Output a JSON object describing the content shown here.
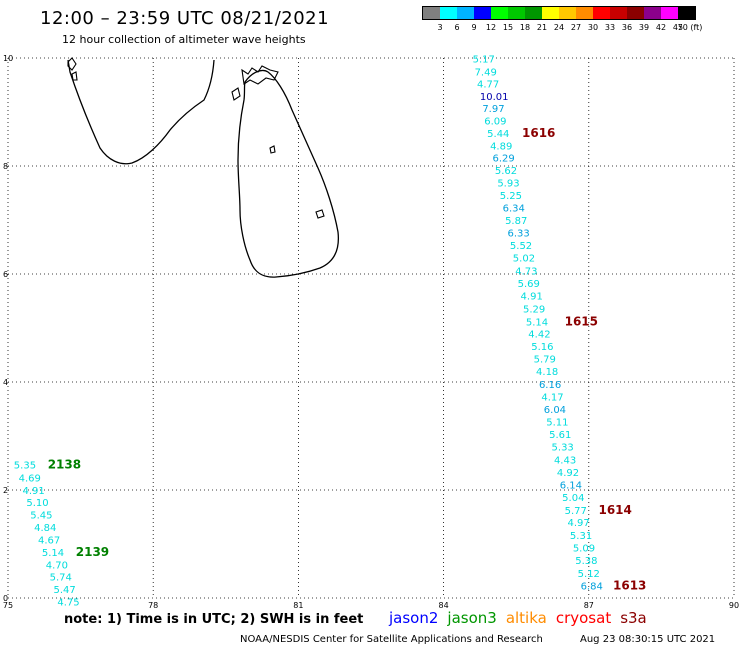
{
  "header": {
    "title": "12:00 – 23:59 UTC 08/21/2021",
    "subtitle": "12 hour collection of altimeter wave heights"
  },
  "color_scale": {
    "labels": [
      "3",
      "6",
      "9",
      "12",
      "15",
      "18",
      "21",
      "24",
      "27",
      "30",
      "33",
      "36",
      "39",
      "42",
      "45",
      "70 (ft)"
    ],
    "colors": [
      "#808080",
      "#00ffff",
      "#00b4ff",
      "#0000ff",
      "#00ff00",
      "#00c800",
      "#009600",
      "#ffff00",
      "#ffc800",
      "#ff8c00",
      "#ff0000",
      "#c80000",
      "#8b0000",
      "#8b008b",
      "#ff00ff",
      "#000000"
    ]
  },
  "map": {
    "x_axis": {
      "min": 75,
      "max": 90,
      "ticks": [
        "75",
        "78",
        "81",
        "84",
        "87",
        "90"
      ]
    },
    "y_axis": {
      "min": 0,
      "max": 10,
      "ticks": [
        "0",
        "2",
        "4",
        "6",
        "8",
        "10"
      ]
    },
    "grid": "dotted",
    "swh_readings": [
      {
        "lon": 84.6,
        "lat": 9.92,
        "v": "5.17",
        "c": "#00dcdc"
      },
      {
        "lon": 84.64,
        "lat": 9.68,
        "v": "7.49",
        "c": "#00dcdc"
      },
      {
        "lon": 84.69,
        "lat": 9.45,
        "v": "4.77",
        "c": "#00dcdc"
      },
      {
        "lon": 84.75,
        "lat": 9.22,
        "v": "10.01",
        "c": "#0000aa"
      },
      {
        "lon": 84.8,
        "lat": 9.0,
        "v": "7.97",
        "c": "#00a0dc"
      },
      {
        "lon": 84.84,
        "lat": 8.77,
        "v": "6.09",
        "c": "#00dcdc"
      },
      {
        "lon": 84.9,
        "lat": 8.54,
        "v": "5.44",
        "c": "#00dcdc"
      },
      {
        "lon": 84.96,
        "lat": 8.31,
        "v": "4.89",
        "c": "#00dcdc"
      },
      {
        "lon": 85.01,
        "lat": 8.08,
        "v": "6.29",
        "c": "#00a0dc"
      },
      {
        "lon": 85.06,
        "lat": 7.85,
        "v": "5.62",
        "c": "#00dcdc"
      },
      {
        "lon": 85.11,
        "lat": 7.62,
        "v": "5.93",
        "c": "#00dcdc"
      },
      {
        "lon": 85.16,
        "lat": 7.39,
        "v": "5.25",
        "c": "#00dcdc"
      },
      {
        "lon": 85.22,
        "lat": 7.16,
        "v": "6.34",
        "c": "#00a0dc"
      },
      {
        "lon": 85.27,
        "lat": 6.93,
        "v": "5.87",
        "c": "#00dcdc"
      },
      {
        "lon": 85.32,
        "lat": 6.69,
        "v": "6.33",
        "c": "#00a0dc"
      },
      {
        "lon": 85.37,
        "lat": 6.46,
        "v": "5.52",
        "c": "#00dcdc"
      },
      {
        "lon": 85.43,
        "lat": 6.23,
        "v": "5.02",
        "c": "#00dcdc"
      },
      {
        "lon": 85.48,
        "lat": 5.99,
        "v": "4.73",
        "c": "#00dcdc"
      },
      {
        "lon": 85.53,
        "lat": 5.76,
        "v": "5.69",
        "c": "#00dcdc"
      },
      {
        "lon": 85.59,
        "lat": 5.53,
        "v": "4.91",
        "c": "#00dcdc"
      },
      {
        "lon": 85.64,
        "lat": 5.29,
        "v": "5.29",
        "c": "#00dcdc"
      },
      {
        "lon": 85.7,
        "lat": 5.05,
        "v": "5.14",
        "c": "#00dcdc"
      },
      {
        "lon": 85.75,
        "lat": 4.82,
        "v": "4.42",
        "c": "#00dcdc"
      },
      {
        "lon": 85.81,
        "lat": 4.59,
        "v": "5.16",
        "c": "#00dcdc"
      },
      {
        "lon": 85.86,
        "lat": 4.36,
        "v": "5.79",
        "c": "#00dcdc"
      },
      {
        "lon": 85.91,
        "lat": 4.13,
        "v": "4.18",
        "c": "#00dcdc"
      },
      {
        "lon": 85.97,
        "lat": 3.89,
        "v": "6.16",
        "c": "#00a0dc"
      },
      {
        "lon": 86.02,
        "lat": 3.66,
        "v": "4.17",
        "c": "#00dcdc"
      },
      {
        "lon": 86.07,
        "lat": 3.43,
        "v": "6.04",
        "c": "#00a0dc"
      },
      {
        "lon": 86.12,
        "lat": 3.19,
        "v": "5.11",
        "c": "#00dcdc"
      },
      {
        "lon": 86.18,
        "lat": 2.96,
        "v": "5.61",
        "c": "#00dcdc"
      },
      {
        "lon": 86.23,
        "lat": 2.73,
        "v": "5.33",
        "c": "#00dcdc"
      },
      {
        "lon": 86.28,
        "lat": 2.49,
        "v": "4.43",
        "c": "#00dcdc"
      },
      {
        "lon": 86.34,
        "lat": 2.26,
        "v": "4.92",
        "c": "#00dcdc"
      },
      {
        "lon": 86.4,
        "lat": 2.03,
        "v": "6.14",
        "c": "#00a0dc"
      },
      {
        "lon": 86.45,
        "lat": 1.8,
        "v": "5.04",
        "c": "#00dcdc"
      },
      {
        "lon": 86.5,
        "lat": 1.56,
        "v": "5.77",
        "c": "#00dcdc"
      },
      {
        "lon": 86.56,
        "lat": 1.33,
        "v": "4.97",
        "c": "#00dcdc"
      },
      {
        "lon": 86.61,
        "lat": 1.09,
        "v": "5.31",
        "c": "#00dcdc"
      },
      {
        "lon": 86.67,
        "lat": 0.86,
        "v": "5.09",
        "c": "#00dcdc"
      },
      {
        "lon": 86.72,
        "lat": 0.63,
        "v": "5.38",
        "c": "#00dcdc"
      },
      {
        "lon": 86.77,
        "lat": 0.39,
        "v": "5.12",
        "c": "#00dcdc"
      },
      {
        "lon": 86.83,
        "lat": 0.16,
        "v": "6.84",
        "c": "#00a0dc"
      },
      {
        "lon": 75.12,
        "lat": 2.4,
        "v": "5.35",
        "c": "#00dcdc"
      },
      {
        "lon": 75.22,
        "lat": 2.16,
        "v": "4.69",
        "c": "#00dcdc"
      },
      {
        "lon": 75.3,
        "lat": 1.93,
        "v": "4.91",
        "c": "#00dcdc"
      },
      {
        "lon": 75.38,
        "lat": 1.7,
        "v": "5.10",
        "c": "#00dcdc"
      },
      {
        "lon": 75.46,
        "lat": 1.47,
        "v": "5.45",
        "c": "#00dcdc"
      },
      {
        "lon": 75.54,
        "lat": 1.24,
        "v": "4.84",
        "c": "#00dcdc"
      },
      {
        "lon": 75.62,
        "lat": 1.01,
        "v": "4.67",
        "c": "#00dcdc"
      },
      {
        "lon": 75.7,
        "lat": 0.78,
        "v": "5.14",
        "c": "#00dcdc"
      },
      {
        "lon": 75.78,
        "lat": 0.55,
        "v": "4.70",
        "c": "#00dcdc"
      },
      {
        "lon": 75.86,
        "lat": 0.32,
        "v": "5.74",
        "c": "#00dcdc"
      },
      {
        "lon": 75.94,
        "lat": 0.09,
        "v": "5.47",
        "c": "#00dcdc"
      },
      {
        "lon": 76.02,
        "lat": -0.14,
        "v": "4.75",
        "c": "#00dcdc"
      }
    ],
    "pass_times": [
      {
        "lon": 85.62,
        "lat": 8.54,
        "v": "1616",
        "c": "#8b0000"
      },
      {
        "lon": 86.5,
        "lat": 5.05,
        "v": "1615",
        "c": "#8b0000"
      },
      {
        "lon": 87.2,
        "lat": 1.56,
        "v": "1614",
        "c": "#8b0000"
      },
      {
        "lon": 87.5,
        "lat": 0.16,
        "v": "1613",
        "c": "#8b0000"
      },
      {
        "lon": 75.82,
        "lat": 2.4,
        "v": "2138",
        "c": "#008000"
      },
      {
        "lon": 76.4,
        "lat": 0.78,
        "v": "2139",
        "c": "#008000"
      }
    ]
  },
  "footer": {
    "note": "note: 1) Time is in UTC; 2) SWH is in feet",
    "satellites": [
      {
        "name": "jason2",
        "color": "#0000ff"
      },
      {
        "name": "jason3",
        "color": "#009600"
      },
      {
        "name": "altika",
        "color": "#ff8c00"
      },
      {
        "name": "cryosat",
        "color": "#ff0000"
      },
      {
        "name": "s3a",
        "color": "#8b0000"
      }
    ],
    "credit": "NOAA/NESDIS Center for Satellite Applications and Research",
    "timestamp": "Aug 23 08:30:15 UTC 2021"
  }
}
